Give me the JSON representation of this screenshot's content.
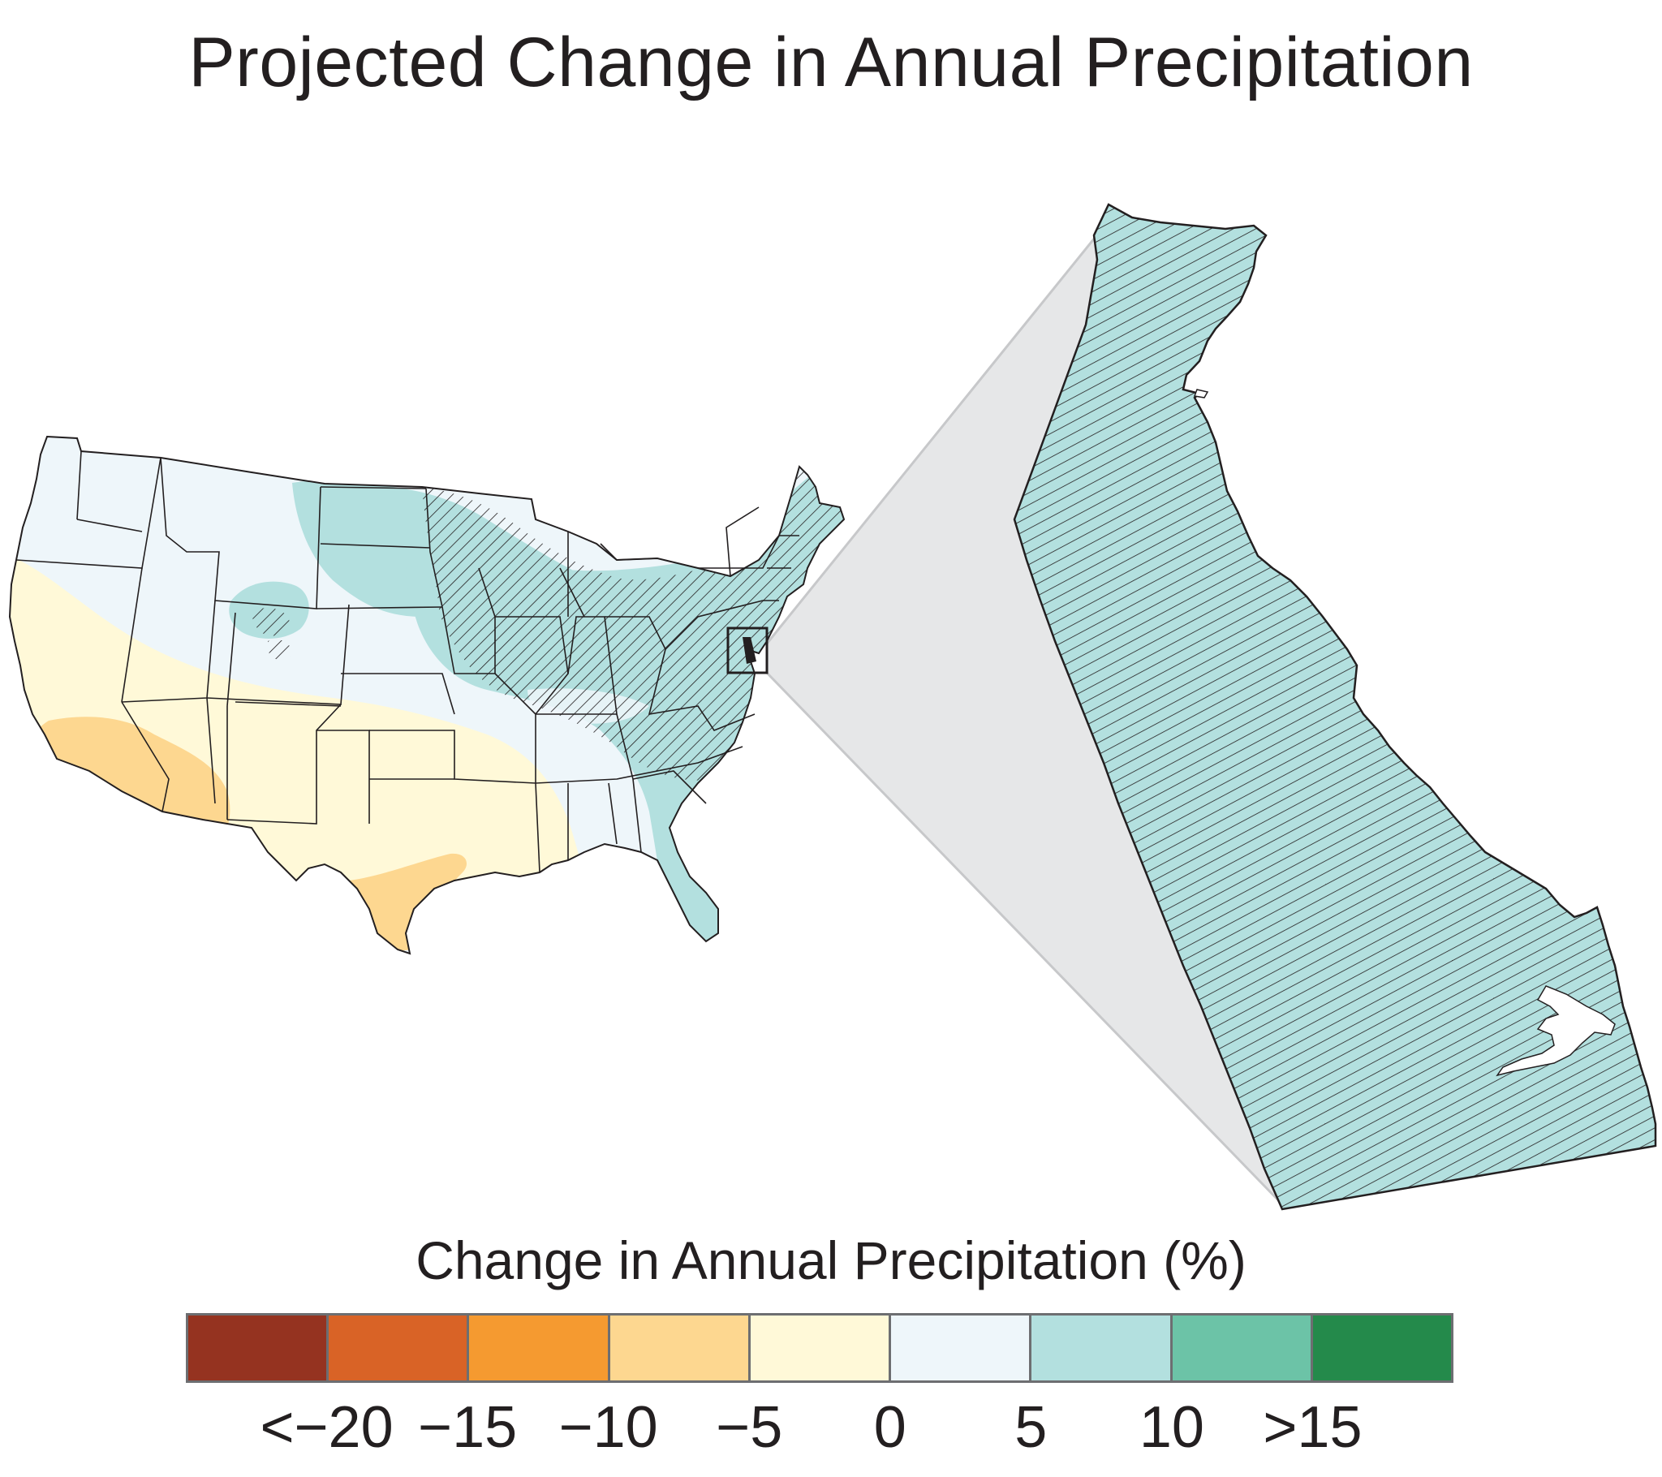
{
  "title": "Projected Change in Annual Precipitation",
  "inset_region": "Delaware",
  "legend": {
    "title": "Change in Annual Precipitation (%)",
    "bins": [
      {
        "color": "#953320"
      },
      {
        "color": "#d96326"
      },
      {
        "color": "#f59a30"
      },
      {
        "color": "#fdd790"
      },
      {
        "color": "#fff9d8"
      },
      {
        "color": "#eef6fa"
      },
      {
        "color": "#b3e0df"
      },
      {
        "color": "#6cc3a7"
      },
      {
        "color": "#248a4b"
      }
    ],
    "tick_labels": [
      "<−20",
      "−15",
      "−10",
      "−5",
      "0",
      "5",
      "10",
      ">15"
    ]
  },
  "colors": {
    "background": "#ffffff",
    "state_borders": "#231f20",
    "hatch": "#231f20",
    "zoom_wedge": "#e6e7e8",
    "zoom_wedge_edge": "#c7c8ca"
  }
}
